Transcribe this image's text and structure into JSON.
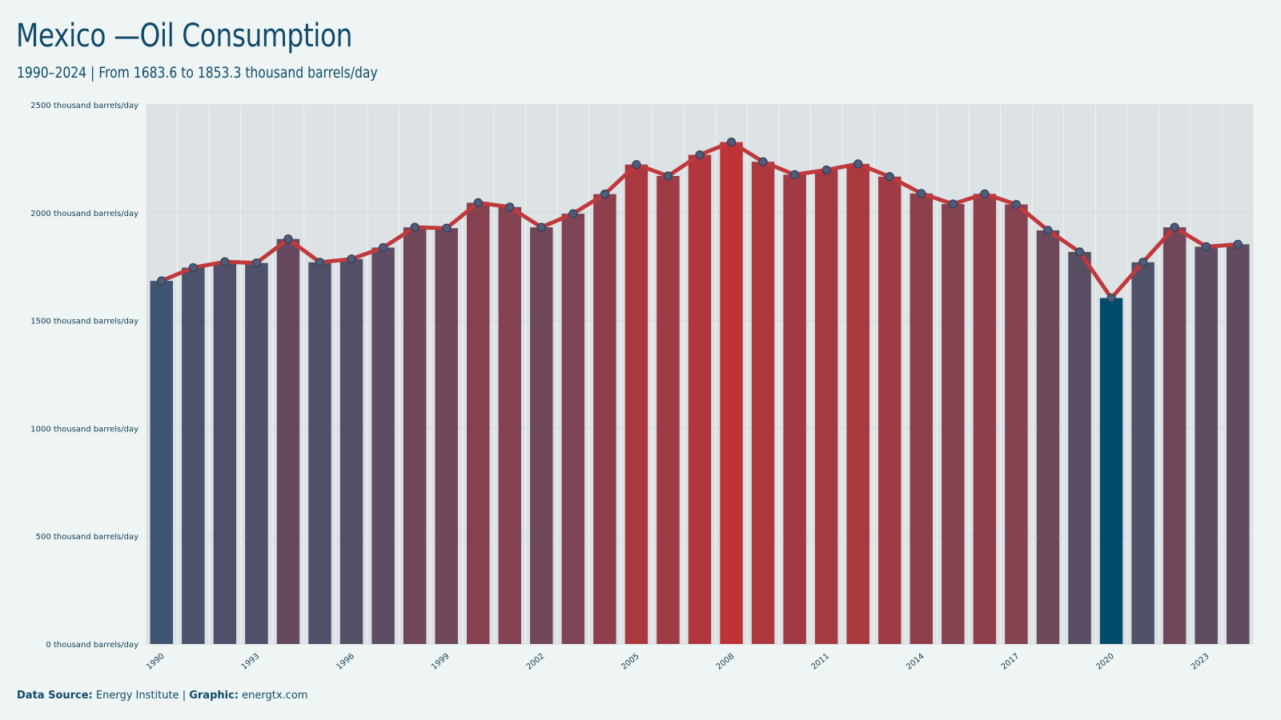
{
  "title": "Mexico —Oil Consumption",
  "subtitle": "1990–2024 | From 1683.6 to 1853.3 thousand barrels/day",
  "footer": {
    "source_label": "Data Source:",
    "source_value": "Energy Institute",
    "separator": "|",
    "graphic_label": "Graphic:",
    "graphic_value": "energtx.com"
  },
  "colors": {
    "background": "#eff5f4",
    "bar_low": "#2f5878",
    "bar_high": "#be3336",
    "bar_min_highlight": "#004c6d",
    "line": "#c0393c",
    "marker_fill": "#4f5d78",
    "marker_stroke": "#2e3d5a",
    "band": "#dde3e5",
    "grid": "#cfd9dc"
  },
  "chart_data": {
    "type": "bar",
    "title": "Mexico —Oil Consumption",
    "ylim": [
      0,
      2500
    ],
    "ytick_values": [
      0,
      500,
      1000,
      1500,
      2000,
      2500
    ],
    "ytick_labels": [
      "0 thousand barrels/day",
      "500 thousand barrels/day",
      "1000 thousand barrels/day",
      "1500 thousand barrels/day",
      "2000 thousand barrels/day",
      "2500 thousand barrels/day"
    ],
    "xtick_labels": [
      "1990",
      "1993",
      "1996",
      "1999",
      "2002",
      "2005",
      "2008",
      "2011",
      "2014",
      "2017",
      "2020",
      "2023"
    ],
    "grid": true,
    "categories": [
      "1990",
      "1991",
      "1992",
      "1993",
      "1994",
      "1995",
      "1996",
      "1997",
      "1998",
      "1999",
      "2000",
      "2001",
      "2002",
      "2003",
      "2004",
      "2005",
      "2006",
      "2007",
      "2008",
      "2009",
      "2010",
      "2011",
      "2012",
      "2013",
      "2014",
      "2015",
      "2016",
      "2017",
      "2018",
      "2019",
      "2020",
      "2021",
      "2022",
      "2023",
      "2024"
    ],
    "values": [
      1683.6,
      1745,
      1772,
      1767,
      1878,
      1770,
      1785,
      1838,
      1932,
      1928,
      2046,
      2026,
      1932,
      1995,
      2086,
      2223,
      2170,
      2268,
      2327,
      2236,
      2176,
      2198,
      2226,
      2167,
      2089,
      2040,
      2087,
      2038,
      1918,
      1818,
      1604,
      1770,
      1932,
      1842,
      1853.3
    ]
  }
}
